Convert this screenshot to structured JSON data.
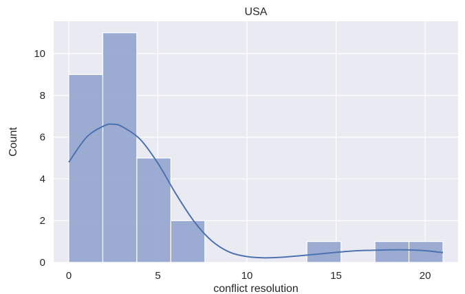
{
  "chart_data": {
    "type": "bar",
    "chart_kind": "histogram with KDE",
    "title": "USA",
    "xlabel": "conflict resolution",
    "ylabel": "Count",
    "xlim": [
      -0.85,
      21.85
    ],
    "ylim": [
      0,
      11.55
    ],
    "xticks": [
      0,
      5,
      10,
      15,
      20
    ],
    "yticks": [
      0,
      2,
      4,
      6,
      8,
      10
    ],
    "grid": true,
    "legend": "none",
    "bin_edges": [
      0,
      1.909,
      3.818,
      5.727,
      7.636,
      9.545,
      11.455,
      13.364,
      15.273,
      17.182,
      19.091,
      21.0
    ],
    "values": [
      9,
      11,
      5,
      2,
      0,
      0,
      0,
      1,
      0,
      1,
      1
    ],
    "kde": {
      "x": [
        0,
        1,
        2,
        2.5,
        3,
        4,
        5,
        6,
        7,
        8,
        9,
        10,
        11,
        12,
        13,
        14,
        15,
        16,
        17,
        18,
        19,
        20,
        21
      ],
      "y": [
        4.8,
        6.0,
        6.55,
        6.62,
        6.5,
        5.9,
        4.75,
        3.3,
        2.0,
        1.05,
        0.5,
        0.28,
        0.22,
        0.25,
        0.32,
        0.4,
        0.48,
        0.55,
        0.58,
        0.6,
        0.6,
        0.56,
        0.47
      ]
    },
    "colors": {
      "plot_background": "#eaeaf2",
      "bar_fill": "#8da0cb",
      "bar_stroke": "#ffffff",
      "kde_line": "#4c72b0",
      "grid": "#ffffff"
    }
  }
}
